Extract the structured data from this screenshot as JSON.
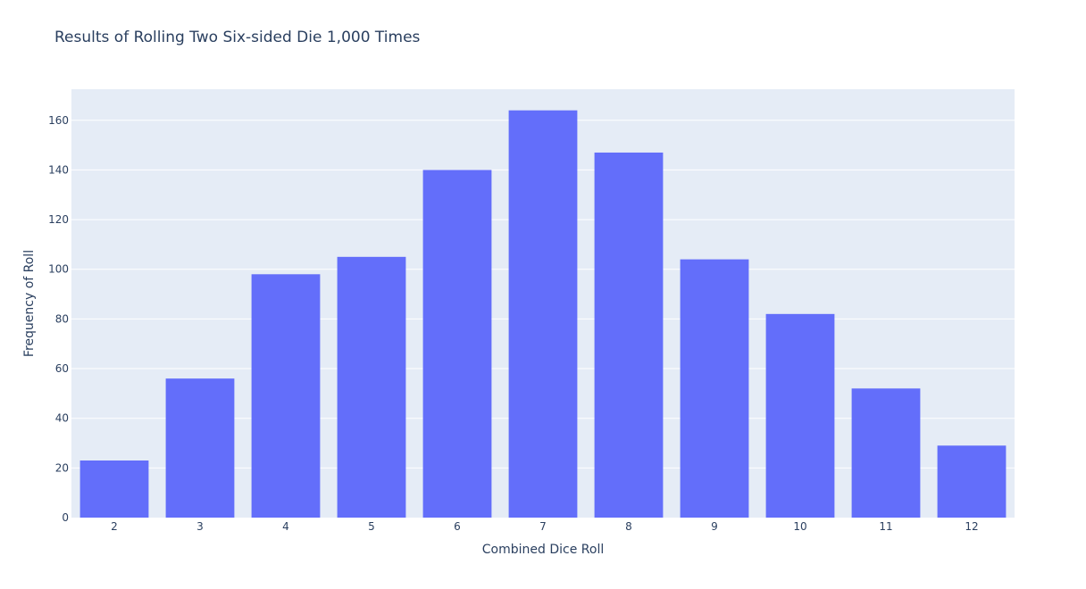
{
  "chart_data": {
    "type": "bar",
    "title": "Results of Rolling Two Six-sided Die 1,000 Times",
    "xlabel": "Combined Dice Roll",
    "ylabel": "Frequency of Roll",
    "categories": [
      "2",
      "3",
      "4",
      "5",
      "6",
      "7",
      "8",
      "9",
      "10",
      "11",
      "12"
    ],
    "values": [
      23,
      56,
      98,
      105,
      140,
      164,
      147,
      104,
      82,
      52,
      29
    ],
    "ylim": [
      0,
      172.5
    ],
    "yticks": [
      0,
      20,
      40,
      60,
      80,
      100,
      120,
      140,
      160
    ],
    "grid": true,
    "colors": {
      "bar": "#636efa",
      "plot_bg": "#e5ecf6",
      "grid": "#ffffff",
      "text": "#2a3f5f"
    }
  }
}
